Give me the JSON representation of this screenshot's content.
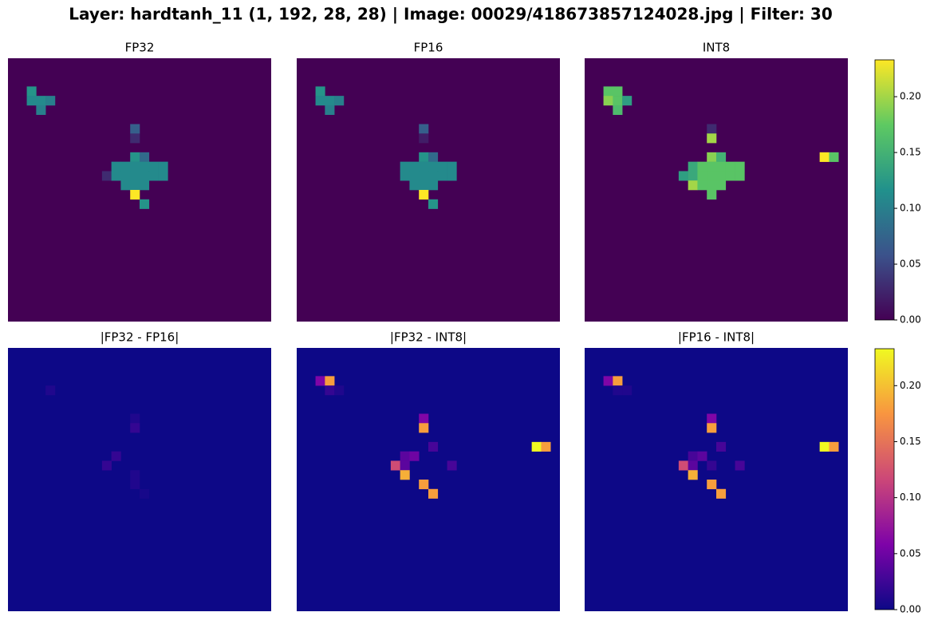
{
  "title": "Layer: hardtanh_11 (1, 192, 28, 28) | Image: 00029/418673857124028.jpg | Filter: 30",
  "chart_data": [
    {
      "type": "heatmap",
      "title": "FP32",
      "colormap": "viridis",
      "xlim": [
        0,
        28
      ],
      "ylim": [
        28,
        0
      ],
      "clim": [
        0,
        0.233
      ],
      "cells": [
        [
          3,
          2,
          0.12
        ],
        [
          4,
          2,
          0.11
        ],
        [
          4,
          3,
          0.11
        ],
        [
          4,
          4,
          0.1
        ],
        [
          5,
          3,
          0.1
        ],
        [
          7,
          13,
          0.07
        ],
        [
          8,
          13,
          0.03
        ],
        [
          10,
          13,
          0.12
        ],
        [
          10,
          14,
          0.08
        ],
        [
          11,
          11,
          0.11
        ],
        [
          11,
          12,
          0.11
        ],
        [
          11,
          13,
          0.11
        ],
        [
          11,
          14,
          0.11
        ],
        [
          11,
          15,
          0.11
        ],
        [
          11,
          16,
          0.11
        ],
        [
          12,
          10,
          0.03
        ],
        [
          12,
          11,
          0.11
        ],
        [
          12,
          12,
          0.11
        ],
        [
          12,
          13,
          0.11
        ],
        [
          12,
          14,
          0.11
        ],
        [
          12,
          15,
          0.11
        ],
        [
          12,
          16,
          0.11
        ],
        [
          13,
          12,
          0.11
        ],
        [
          13,
          13,
          0.11
        ],
        [
          13,
          14,
          0.11
        ],
        [
          14,
          13,
          0.233
        ],
        [
          15,
          14,
          0.12
        ]
      ]
    },
    {
      "type": "heatmap",
      "title": "FP16",
      "colormap": "viridis",
      "xlim": [
        0,
        28
      ],
      "ylim": [
        28,
        0
      ],
      "clim": [
        0,
        0.233
      ],
      "cells": [
        [
          3,
          2,
          0.12
        ],
        [
          4,
          2,
          0.11
        ],
        [
          4,
          3,
          0.11
        ],
        [
          4,
          4,
          0.1
        ],
        [
          5,
          3,
          0.1
        ],
        [
          7,
          13,
          0.07
        ],
        [
          8,
          13,
          0.02
        ],
        [
          10,
          13,
          0.12
        ],
        [
          10,
          14,
          0.08
        ],
        [
          11,
          11,
          0.11
        ],
        [
          11,
          12,
          0.11
        ],
        [
          11,
          13,
          0.11
        ],
        [
          11,
          14,
          0.11
        ],
        [
          11,
          15,
          0.11
        ],
        [
          11,
          16,
          0.11
        ],
        [
          12,
          11,
          0.11
        ],
        [
          12,
          12,
          0.11
        ],
        [
          12,
          13,
          0.11
        ],
        [
          12,
          14,
          0.11
        ],
        [
          12,
          15,
          0.11
        ],
        [
          12,
          16,
          0.11
        ],
        [
          13,
          12,
          0.11
        ],
        [
          13,
          13,
          0.11
        ],
        [
          13,
          14,
          0.11
        ],
        [
          14,
          13,
          0.233
        ],
        [
          15,
          14,
          0.12
        ]
      ]
    },
    {
      "type": "heatmap",
      "title": "INT8",
      "colormap": "viridis",
      "xlim": [
        0,
        28
      ],
      "ylim": [
        28,
        0
      ],
      "clim": [
        0,
        0.233
      ],
      "cells": [
        [
          3,
          2,
          0.17
        ],
        [
          3,
          3,
          0.17
        ],
        [
          4,
          2,
          0.19
        ],
        [
          4,
          3,
          0.17
        ],
        [
          4,
          4,
          0.13
        ],
        [
          5,
          3,
          0.16
        ],
        [
          7,
          13,
          0.03
        ],
        [
          8,
          13,
          0.2
        ],
        [
          10,
          13,
          0.19
        ],
        [
          10,
          14,
          0.15
        ],
        [
          10,
          25,
          0.233
        ],
        [
          10,
          26,
          0.17
        ],
        [
          11,
          11,
          0.14
        ],
        [
          11,
          12,
          0.17
        ],
        [
          11,
          13,
          0.17
        ],
        [
          11,
          14,
          0.17
        ],
        [
          11,
          15,
          0.17
        ],
        [
          11,
          16,
          0.17
        ],
        [
          12,
          10,
          0.13
        ],
        [
          12,
          11,
          0.14
        ],
        [
          12,
          12,
          0.17
        ],
        [
          12,
          13,
          0.17
        ],
        [
          12,
          14,
          0.17
        ],
        [
          12,
          15,
          0.17
        ],
        [
          12,
          16,
          0.17
        ],
        [
          13,
          11,
          0.2
        ],
        [
          13,
          12,
          0.17
        ],
        [
          13,
          13,
          0.17
        ],
        [
          13,
          14,
          0.17
        ],
        [
          14,
          13,
          0.17
        ]
      ]
    },
    {
      "type": "colorbar",
      "colormap": "viridis",
      "ylim": [
        0,
        0.233
      ],
      "yticks": [
        {
          "value": 0,
          "label": "0.00"
        },
        {
          "value": 0.05,
          "label": "0.05"
        },
        {
          "value": 0.1,
          "label": "0.10"
        },
        {
          "value": 0.15,
          "label": "0.15"
        },
        {
          "value": 0.2,
          "label": "0.20"
        }
      ]
    },
    {
      "type": "heatmap",
      "title": "|FP32 - FP16|",
      "colormap": "plasma",
      "xlim": [
        0,
        28
      ],
      "ylim": [
        28,
        0
      ],
      "clim": [
        0,
        0.233
      ],
      "cells": [
        [
          4,
          4,
          0.01
        ],
        [
          7,
          13,
          0.01
        ],
        [
          8,
          13,
          0.02
        ],
        [
          11,
          11,
          0.02
        ],
        [
          12,
          10,
          0.02
        ],
        [
          13,
          13,
          0.01
        ],
        [
          14,
          13,
          0.01
        ],
        [
          15,
          14,
          0.005
        ]
      ]
    },
    {
      "type": "heatmap",
      "title": "|FP32 - INT8|",
      "colormap": "plasma",
      "xlim": [
        0,
        28
      ],
      "ylim": [
        28,
        0
      ],
      "clim": [
        0,
        0.233
      ],
      "cells": [
        [
          3,
          2,
          0.06
        ],
        [
          3,
          3,
          0.18
        ],
        [
          4,
          3,
          0.02
        ],
        [
          4,
          4,
          0.01
        ],
        [
          7,
          13,
          0.06
        ],
        [
          8,
          13,
          0.18
        ],
        [
          10,
          14,
          0.03
        ],
        [
          10,
          25,
          0.233
        ],
        [
          10,
          26,
          0.18
        ],
        [
          11,
          11,
          0.04
        ],
        [
          11,
          12,
          0.05
        ],
        [
          12,
          10,
          0.12
        ],
        [
          12,
          11,
          0.04
        ],
        [
          12,
          16,
          0.03
        ],
        [
          13,
          11,
          0.19
        ],
        [
          14,
          13,
          0.18
        ],
        [
          15,
          14,
          0.18
        ]
      ]
    },
    {
      "type": "heatmap",
      "title": "|FP16 - INT8|",
      "colormap": "plasma",
      "xlim": [
        0,
        28
      ],
      "ylim": [
        28,
        0
      ],
      "clim": [
        0,
        0.233
      ],
      "cells": [
        [
          3,
          2,
          0.06
        ],
        [
          3,
          3,
          0.18
        ],
        [
          4,
          3,
          0.01
        ],
        [
          4,
          4,
          0.01
        ],
        [
          7,
          13,
          0.06
        ],
        [
          8,
          13,
          0.18
        ],
        [
          10,
          14,
          0.03
        ],
        [
          10,
          25,
          0.233
        ],
        [
          10,
          26,
          0.18
        ],
        [
          11,
          11,
          0.03
        ],
        [
          11,
          12,
          0.04
        ],
        [
          12,
          10,
          0.12
        ],
        [
          12,
          11,
          0.04
        ],
        [
          12,
          13,
          0.02
        ],
        [
          12,
          16,
          0.03
        ],
        [
          13,
          11,
          0.19
        ],
        [
          14,
          13,
          0.18
        ],
        [
          15,
          14,
          0.18
        ]
      ]
    },
    {
      "type": "colorbar",
      "colormap": "plasma",
      "ylim": [
        0,
        0.233
      ],
      "yticks": [
        {
          "value": 0,
          "label": "0.00"
        },
        {
          "value": 0.05,
          "label": "0.05"
        },
        {
          "value": 0.1,
          "label": "0.10"
        },
        {
          "value": 0.15,
          "label": "0.15"
        },
        {
          "value": 0.2,
          "label": "0.20"
        }
      ]
    }
  ]
}
